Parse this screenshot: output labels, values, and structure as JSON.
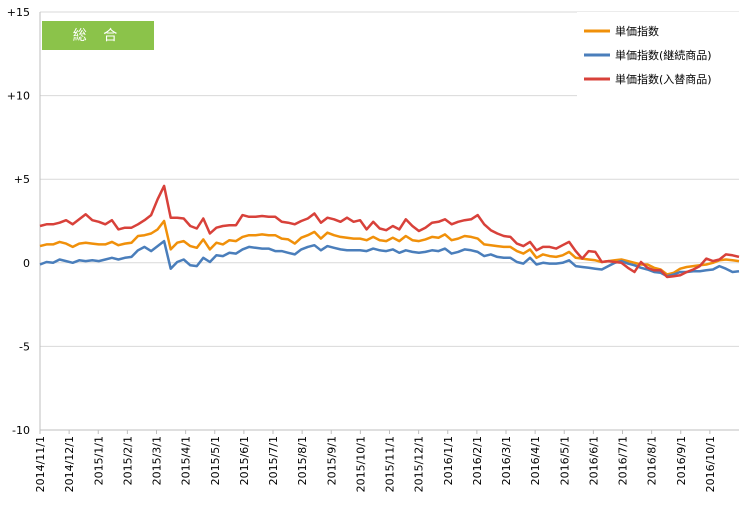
{
  "chart_data": {
    "type": "line",
    "title_badge": "総 合",
    "xlabel": "",
    "ylabel": "",
    "ylim": [
      -10,
      15
    ],
    "yticks": [
      15,
      10,
      5,
      0,
      -5,
      -10
    ],
    "ytick_labels": [
      "+15",
      "+10",
      "+5",
      "0",
      "-5",
      "-10"
    ],
    "grid": "horizontal",
    "legend_position": "top-right",
    "x_start": "2014/11/1",
    "xtick_labels": [
      "2014/11/1",
      "2014/12/1",
      "2015/1/1",
      "2015/2/1",
      "2015/3/1",
      "2015/4/1",
      "2015/5/1",
      "2015/6/1",
      "2015/7/1",
      "2015/8/1",
      "2015/9/1",
      "2015/10/1",
      "2015/11/1",
      "2015/12/1",
      "2016/1/1",
      "2016/2/1",
      "2016/3/1",
      "2016/4/1",
      "2016/5/1",
      "2016/6/1",
      "2016/7/1",
      "2016/8/1",
      "2016/9/1",
      "2016/10/1"
    ],
    "series": [
      {
        "name": "単価指数",
        "color": "#F0900A",
        "values": [
          1.0,
          1.1,
          1.1,
          1.25,
          1.15,
          0.95,
          1.15,
          1.2,
          1.15,
          1.1,
          1.1,
          1.25,
          1.05,
          1.15,
          1.2,
          1.6,
          1.65,
          1.75,
          2.0,
          2.5,
          0.8,
          1.2,
          1.3,
          1.0,
          0.9,
          1.4,
          0.8,
          1.2,
          1.1,
          1.35,
          1.3,
          1.55,
          1.65,
          1.65,
          1.7,
          1.65,
          1.65,
          1.45,
          1.4,
          1.15,
          1.5,
          1.65,
          1.85,
          1.45,
          1.8,
          1.65,
          1.55,
          1.5,
          1.45,
          1.45,
          1.35,
          1.55,
          1.35,
          1.3,
          1.5,
          1.3,
          1.6,
          1.35,
          1.3,
          1.4,
          1.55,
          1.5,
          1.7,
          1.35,
          1.45,
          1.6,
          1.55,
          1.45,
          1.1,
          1.05,
          1.0,
          0.95,
          0.95,
          0.7,
          0.55,
          0.8,
          0.3,
          0.5,
          0.4,
          0.35,
          0.45,
          0.65,
          0.3,
          0.25,
          0.2,
          0.15,
          0.05,
          0.1,
          0.15,
          0.2,
          0.1,
          0.0,
          -0.1,
          -0.1,
          -0.3,
          -0.4,
          -0.7,
          -0.6,
          -0.35,
          -0.25,
          -0.2,
          -0.15,
          -0.1,
          0.0,
          0.15,
          0.2,
          0.15,
          0.1
        ]
      },
      {
        "name": "単価指数(継続商品)",
        "color": "#4A7EBB",
        "values": [
          -0.1,
          0.05,
          0.0,
          0.2,
          0.1,
          0.0,
          0.15,
          0.1,
          0.15,
          0.1,
          0.2,
          0.3,
          0.2,
          0.3,
          0.35,
          0.75,
          0.95,
          0.7,
          1.0,
          1.3,
          -0.35,
          0.05,
          0.2,
          -0.15,
          -0.2,
          0.3,
          0.05,
          0.45,
          0.4,
          0.6,
          0.55,
          0.8,
          0.95,
          0.9,
          0.85,
          0.85,
          0.7,
          0.7,
          0.6,
          0.5,
          0.8,
          0.95,
          1.05,
          0.75,
          1.0,
          0.9,
          0.8,
          0.75,
          0.75,
          0.75,
          0.7,
          0.85,
          0.75,
          0.7,
          0.8,
          0.6,
          0.75,
          0.65,
          0.6,
          0.65,
          0.75,
          0.7,
          0.85,
          0.55,
          0.65,
          0.8,
          0.75,
          0.65,
          0.4,
          0.5,
          0.35,
          0.3,
          0.3,
          0.05,
          -0.05,
          0.3,
          -0.1,
          0.0,
          -0.05,
          -0.05,
          0.0,
          0.15,
          -0.2,
          -0.25,
          -0.3,
          -0.35,
          -0.4,
          -0.2,
          0.0,
          0.1,
          -0.05,
          -0.15,
          -0.3,
          -0.4,
          -0.55,
          -0.6,
          -0.8,
          -0.7,
          -0.55,
          -0.55,
          -0.5,
          -0.5,
          -0.45,
          -0.4,
          -0.2,
          -0.35,
          -0.55,
          -0.5
        ]
      },
      {
        "name": "単価指数(入替商品)",
        "color": "#D8413A",
        "values": [
          2.2,
          2.3,
          2.3,
          2.4,
          2.55,
          2.3,
          2.6,
          2.9,
          2.55,
          2.45,
          2.3,
          2.55,
          2.0,
          2.1,
          2.1,
          2.3,
          2.55,
          2.85,
          3.8,
          4.6,
          2.7,
          2.7,
          2.65,
          2.2,
          2.05,
          2.65,
          1.75,
          2.1,
          2.2,
          2.25,
          2.25,
          2.85,
          2.75,
          2.75,
          2.8,
          2.75,
          2.75,
          2.45,
          2.4,
          2.3,
          2.5,
          2.65,
          2.95,
          2.4,
          2.7,
          2.6,
          2.45,
          2.7,
          2.45,
          2.55,
          2.0,
          2.45,
          2.05,
          1.95,
          2.2,
          2.0,
          2.6,
          2.2,
          1.9,
          2.1,
          2.4,
          2.45,
          2.6,
          2.3,
          2.45,
          2.55,
          2.6,
          2.85,
          2.3,
          1.95,
          1.75,
          1.6,
          1.55,
          1.15,
          1.0,
          1.25,
          0.75,
          0.95,
          0.95,
          0.85,
          1.05,
          1.25,
          0.7,
          0.25,
          0.7,
          0.65,
          0.05,
          0.1,
          0.05,
          0.0,
          -0.3,
          -0.55,
          0.05,
          -0.3,
          -0.45,
          -0.45,
          -0.85,
          -0.8,
          -0.75,
          -0.55,
          -0.4,
          -0.2,
          0.25,
          0.1,
          0.2,
          0.5,
          0.45,
          0.35
        ]
      }
    ]
  }
}
